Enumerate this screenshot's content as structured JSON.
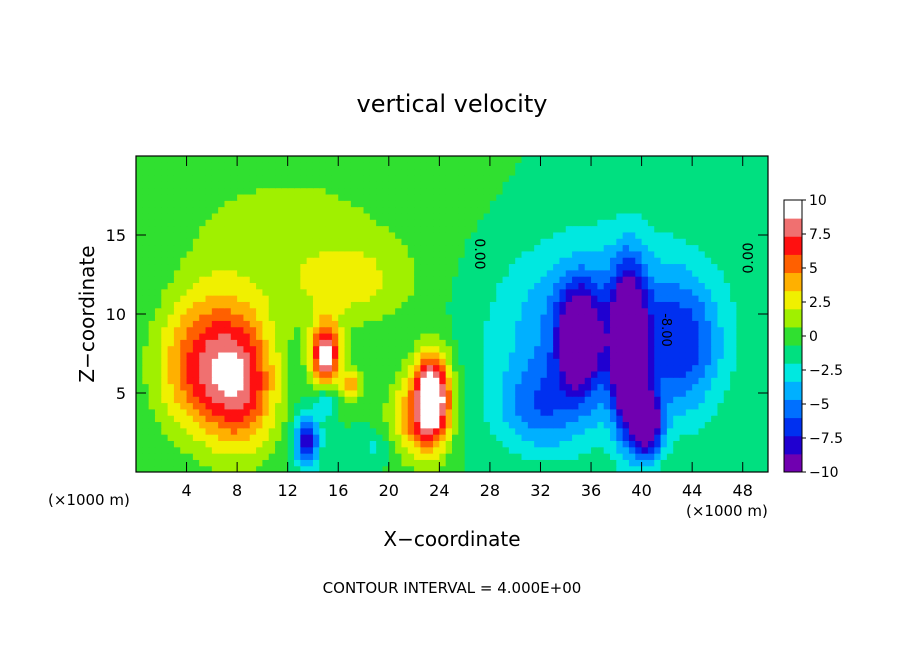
{
  "chart_data": {
    "type": "heatmap",
    "title": "vertical velocity",
    "xlabel": "X−coordinate",
    "ylabel": "Z−coordinate",
    "x_unit_label": "(×1000 m)",
    "x_unit_label_right": "(×1000 m)",
    "footer": "CONTOUR INTERVAL = 4.000E+00",
    "xlim": [
      0,
      50
    ],
    "ylim": [
      0,
      20
    ],
    "x_ticks": [
      "4",
      "8",
      "12",
      "16",
      "20",
      "24",
      "28",
      "32",
      "36",
      "40",
      "44",
      "48"
    ],
    "x_tick_values": [
      4,
      8,
      12,
      16,
      20,
      24,
      28,
      32,
      36,
      40,
      44,
      48
    ],
    "y_ticks": [
      "5",
      "10",
      "15"
    ],
    "y_tick_values": [
      5,
      10,
      15
    ],
    "colorbar": {
      "range": [
        -10,
        10
      ],
      "labels": [
        "10",
        "7.5",
        "5",
        "2.5",
        "0",
        "−2.5",
        "−5",
        "−7.5",
        "−10"
      ],
      "values": [
        10,
        7.5,
        5,
        2.5,
        0,
        -2.5,
        -5,
        -7.5,
        -10
      ],
      "colors": [
        "#7000b0",
        "#2000d0",
        "#0030f0",
        "#0070ff",
        "#00b0ff",
        "#00e8e0",
        "#00e080",
        "#30e030",
        "#a0f000",
        "#f0f000",
        "#ffb000",
        "#ff6000",
        "#ff1010",
        "#f07070",
        "#ffffff"
      ]
    },
    "contour_labels": [
      "0.00",
      "0.00",
      "-8.00"
    ],
    "contour_interval": 4.0,
    "features": [
      {
        "x": 6.5,
        "z": 9.5,
        "w": 2.2,
        "peak": 10,
        "sx": 2.5,
        "sz": 3.5
      },
      {
        "x": 8.5,
        "z": 5.5,
        "w": 7,
        "sx": 2.0,
        "sz": 3.0
      },
      {
        "x": 5.0,
        "z": 6.5,
        "w": 6,
        "sx": 2.5,
        "sz": 3.0
      },
      {
        "x": 15.0,
        "z": 7.5,
        "w": 11,
        "sx": 0.8,
        "sz": 1.4
      },
      {
        "x": 16.5,
        "z": 12.0,
        "w": 3.5,
        "sx": 4.0,
        "sz": 2.0
      },
      {
        "x": 23.5,
        "z": 4.8,
        "w": 12,
        "sx": 1.0,
        "sz": 2.0
      },
      {
        "x": 22.0,
        "z": 3.5,
        "w": 5,
        "sx": 1.5,
        "sz": 2.0
      },
      {
        "x": 17.0,
        "z": 5.5,
        "w": 5,
        "sx": 0.6,
        "sz": 0.8
      },
      {
        "x": 13.5,
        "z": 2.0,
        "w": -8,
        "sx": 0.7,
        "sz": 1.2
      },
      {
        "x": 15.0,
        "z": 4.5,
        "w": -3,
        "sx": 0.6,
        "sz": 0.7
      },
      {
        "x": 35.0,
        "z": 8.5,
        "w": -11,
        "sx": 1.0,
        "sz": 2.0
      },
      {
        "x": 39.0,
        "z": 7.5,
        "w": -12,
        "sx": 0.9,
        "sz": 3.5
      },
      {
        "x": 40.5,
        "z": 3.0,
        "w": -10,
        "sx": 0.8,
        "sz": 1.5
      },
      {
        "x": 37.0,
        "z": 9.0,
        "w": -6,
        "sx": 5.5,
        "sz": 4.0
      },
      {
        "x": 32.0,
        "z": 4.0,
        "w": -4,
        "sx": 2.5,
        "sz": 2.0
      },
      {
        "x": 43.5,
        "z": 8.0,
        "w": -4,
        "sx": 2.0,
        "sz": 3.0
      },
      {
        "x": 19.0,
        "z": 1.5,
        "w": -2,
        "sx": 1.0,
        "sz": 0.8
      },
      {
        "x": 12.5,
        "z": 17.0,
        "w": 1.5,
        "sx": 8.0,
        "sz": 3.0
      }
    ]
  }
}
